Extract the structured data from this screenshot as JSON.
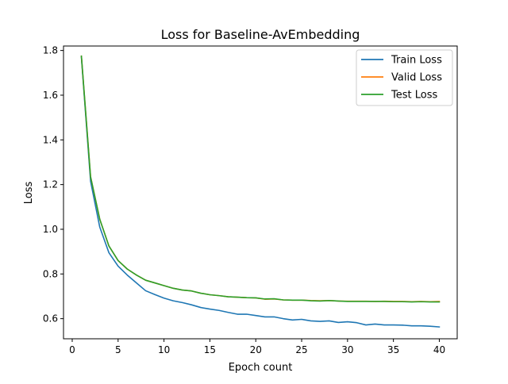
{
  "chart_data": {
    "type": "line",
    "title": "Loss for Baseline-AvEmbedding",
    "xlabel": "Epoch count",
    "ylabel": "Loss",
    "xlim": [
      -0.95,
      41.95
    ],
    "ylim": [
      0.51,
      1.82
    ],
    "xticks": [
      0,
      5,
      10,
      15,
      20,
      25,
      30,
      35,
      40
    ],
    "yticks": [
      0.6,
      0.8,
      1.0,
      1.2,
      1.4,
      1.6,
      1.8
    ],
    "xtick_labels": [
      "0",
      "5",
      "10",
      "15",
      "20",
      "25",
      "30",
      "35",
      "40"
    ],
    "ytick_labels": [
      "0.6",
      "0.8",
      "1.0",
      "1.2",
      "1.4",
      "1.6",
      "1.8"
    ],
    "grid": false,
    "legend_position": "top-right",
    "x": [
      1,
      2,
      3,
      4,
      5,
      6,
      7,
      8,
      9,
      10,
      11,
      12,
      13,
      14,
      15,
      16,
      17,
      18,
      19,
      20,
      21,
      22,
      23,
      24,
      25,
      26,
      27,
      28,
      29,
      30,
      31,
      32,
      33,
      34,
      35,
      36,
      37,
      38,
      39,
      40
    ],
    "series": [
      {
        "name": "Train Loss",
        "color": "#1f77b4",
        "values": [
          1.77,
          1.215,
          1.01,
          0.895,
          0.835,
          0.795,
          0.76,
          0.725,
          0.708,
          0.692,
          0.68,
          0.672,
          0.662,
          0.65,
          0.643,
          0.637,
          0.628,
          0.62,
          0.62,
          0.614,
          0.608,
          0.608,
          0.6,
          0.594,
          0.597,
          0.59,
          0.588,
          0.59,
          0.583,
          0.586,
          0.582,
          0.572,
          0.576,
          0.572,
          0.572,
          0.571,
          0.568,
          0.568,
          0.566,
          0.563
        ]
      },
      {
        "name": "Valid Loss",
        "color": "#ff7f0e",
        "values": [
          1.775,
          1.235,
          1.045,
          0.925,
          0.86,
          0.822,
          0.795,
          0.772,
          0.76,
          0.748,
          0.736,
          0.728,
          0.724,
          0.714,
          0.707,
          0.703,
          0.698,
          0.696,
          0.694,
          0.693,
          0.687,
          0.688,
          0.684,
          0.683,
          0.683,
          0.681,
          0.68,
          0.681,
          0.679,
          0.678,
          0.678,
          0.678,
          0.677,
          0.678,
          0.677,
          0.677,
          0.676,
          0.677,
          0.676,
          0.677
        ]
      },
      {
        "name": "Test Loss",
        "color": "#2ca02c",
        "values": [
          1.775,
          1.235,
          1.045,
          0.925,
          0.86,
          0.822,
          0.795,
          0.772,
          0.76,
          0.748,
          0.736,
          0.728,
          0.724,
          0.714,
          0.707,
          0.703,
          0.698,
          0.696,
          0.694,
          0.693,
          0.688,
          0.689,
          0.684,
          0.683,
          0.683,
          0.68,
          0.679,
          0.681,
          0.679,
          0.677,
          0.677,
          0.677,
          0.677,
          0.677,
          0.676,
          0.676,
          0.675,
          0.676,
          0.675,
          0.675
        ]
      }
    ]
  }
}
